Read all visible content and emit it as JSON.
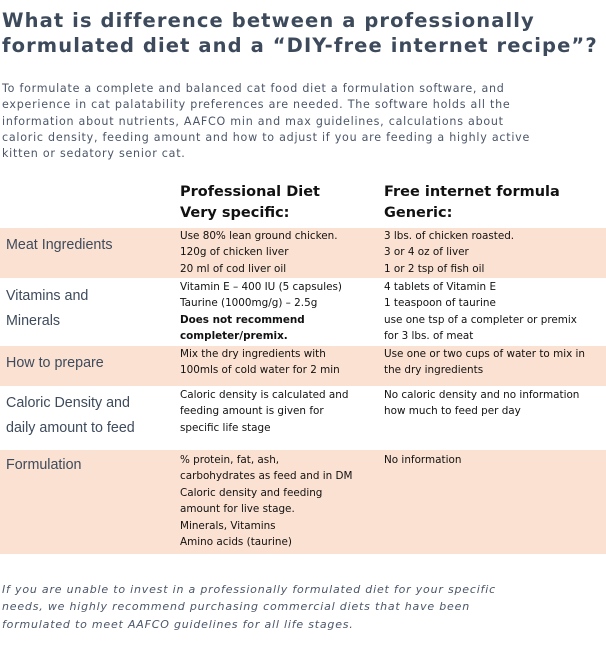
{
  "title": {
    "lines": [
      "What is difference between a professionally",
      "formulated diet and a “DIY-free internet recipe”?"
    ]
  },
  "intro": {
    "lines": [
      "To formulate a complete and balanced cat food diet a formulation software, and",
      "experience in cat palatability preferences are needed. The software holds all the",
      "information about nutrients, AAFCO min and max guidelines, calculations about",
      "caloric density, feeding amount and how to adjust if you are feeding a highly active",
      "kitten or sedatory senior cat."
    ]
  },
  "table": {
    "headers": {
      "professional": [
        "Professional Diet",
        "Very specific:"
      ],
      "internet": [
        "Free internet formula",
        "Generic:"
      ]
    },
    "rows": [
      {
        "label": [
          "Meat Ingredients"
        ],
        "professional": [
          {
            "text": "Use 80% lean ground chicken."
          },
          {
            "text": "120g of chicken liver"
          },
          {
            "text": "20 ml of cod liver oil"
          }
        ],
        "internet": [
          {
            "text": "3 lbs. of chicken roasted."
          },
          {
            "text": "3 or 4 oz of liver"
          },
          {
            "text": "1 or 2 tsp of fish oil"
          }
        ]
      },
      {
        "label": [
          "Vitamins and",
          "Minerals"
        ],
        "professional": [
          {
            "text": "Vitamin E – 400 IU (5 capsules)"
          },
          {
            "text": "Taurine (1000mg/g) – 2.5g"
          },
          {
            "text": "Does not recommend",
            "bold": true
          },
          {
            "text": "completer/premix.",
            "bold": true
          }
        ],
        "internet": [
          {
            "text": "4 tablets of Vitamin E"
          },
          {
            "text": "1 teaspoon of taurine"
          },
          {
            "text": "use one tsp of a completer or premix"
          },
          {
            "text": "for 3 lbs. of meat"
          }
        ]
      },
      {
        "label": [
          "How to prepare"
        ],
        "professional": [
          {
            "text": "Mix the dry ingredients with"
          },
          {
            "text": "100mls of cold water for 2 min"
          }
        ],
        "internet": [
          {
            "text": "Use one or two cups of water to mix in"
          },
          {
            "text": "the dry ingredients"
          }
        ]
      },
      {
        "label": [
          "Caloric Density and",
          "daily amount to feed"
        ],
        "professional": [
          {
            "text": "Caloric density is calculated and"
          },
          {
            "text": "feeding amount is given for"
          },
          {
            "text": "specific life stage"
          }
        ],
        "internet": [
          {
            "text": "No caloric density and no information"
          },
          {
            "text": "how much to feed per day"
          }
        ]
      },
      {
        "label": [
          "Formulation"
        ],
        "professional": [
          {
            "text": " % protein, fat, ash,"
          },
          {
            "text": "carbohydrates as feed and in DM"
          },
          {
            "text": "Caloric density and feeding"
          },
          {
            "text": "amount for live stage."
          },
          {
            "text": "Minerals, Vitamins"
          },
          {
            "text": "Amino acids (taurine)"
          }
        ],
        "internet": [
          {
            "text": "No information"
          }
        ]
      }
    ]
  },
  "outro": {
    "lines": [
      "If you are unable to invest in a professionally formulated diet for your specific",
      "needs, we highly recommend purchasing commercial diets that have been",
      "formulated to meet AAFCO guidelines for all life stages."
    ]
  },
  "colors": {
    "row_shade": "#fbe1d2",
    "heading_text": "#3d4a5c",
    "body_text": "#4b5668"
  }
}
